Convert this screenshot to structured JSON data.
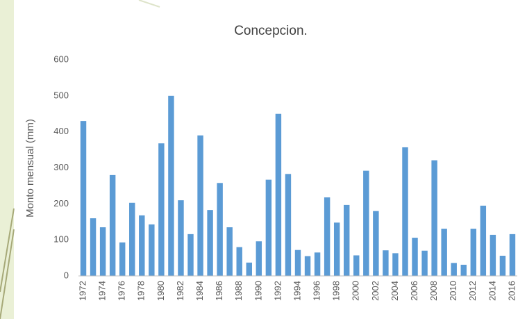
{
  "chart_data": {
    "type": "bar",
    "title": "Concepcion.",
    "y_label": "Monto mensual (mm)",
    "categories": [
      "1972",
      null,
      "1974",
      null,
      "1976",
      null,
      "1978",
      null,
      "1980",
      null,
      "1982",
      null,
      "1984",
      null,
      "1986",
      null,
      "1988",
      null,
      "1990",
      null,
      "1992",
      null,
      "1994",
      null,
      "1996",
      null,
      "1998",
      null,
      "2000",
      null,
      "2002",
      null,
      "2004",
      null,
      "2006",
      null,
      "2008",
      null,
      "2010",
      null,
      "2012",
      null,
      "2014",
      null,
      "2016"
    ],
    "values": [
      430,
      160,
      135,
      280,
      93,
      203,
      168,
      143,
      368,
      500,
      210,
      116,
      390,
      183,
      258,
      135,
      80,
      37,
      96,
      267,
      450,
      283,
      72,
      55,
      65,
      218,
      148,
      197,
      57,
      292,
      180,
      71,
      63,
      357,
      106,
      70,
      321,
      131,
      36,
      31,
      131,
      195,
      114,
      56,
      116
    ],
    "color": "#5b9bd5",
    "ylim": [
      0,
      600
    ],
    "yticks": [
      0,
      100,
      200,
      300,
      400,
      500,
      600
    ],
    "grid": false
  }
}
